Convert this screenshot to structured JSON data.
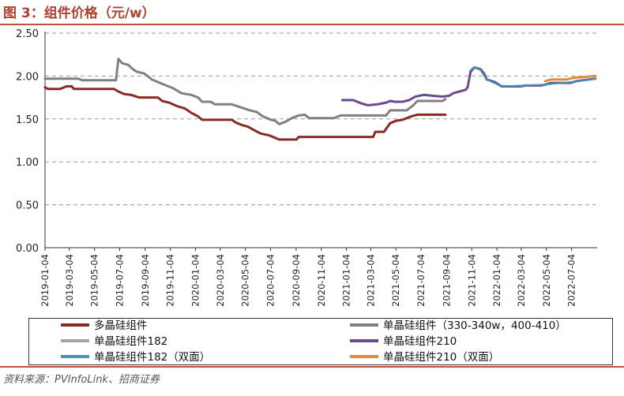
{
  "header": {
    "title": "图 3：组件价格（元/w）"
  },
  "source": "资料来源：PVInfoLink、招商证券",
  "chart_data": {
    "type": "line",
    "title": "",
    "xlabel": "",
    "ylabel": "",
    "ylim": [
      0,
      2.5
    ],
    "yticks": [
      "0.00",
      "0.50",
      "1.00",
      "1.50",
      "2.00",
      "2.50"
    ],
    "xticks": [
      "2019-01-04",
      "2019-03-04",
      "2019-05-04",
      "2019-07-04",
      "2019-09-04",
      "2019-11-04",
      "2020-01-04",
      "2020-03-04",
      "2020-05-04",
      "2020-07-04",
      "2020-09-04",
      "2020-11-04",
      "2021-01-04",
      "2021-03-04",
      "2021-05-04",
      "2021-07-04",
      "2021-09-04",
      "2021-11-04",
      "2022-01-04",
      "2022-03-04",
      "2022-05-04",
      "2022-07-04"
    ],
    "grid": "horizontal-dashed",
    "legend_position": "bottom",
    "series": [
      {
        "name": "多晶硅组件",
        "color": "#8b2a22",
        "points": [
          [
            "2019-01-04",
            1.87
          ],
          [
            "2019-01-10",
            1.85
          ],
          [
            "2019-02-10",
            1.85
          ],
          [
            "2019-02-25",
            1.88
          ],
          [
            "2019-03-10",
            1.88
          ],
          [
            "2019-03-15",
            1.85
          ],
          [
            "2019-06-20",
            1.85
          ],
          [
            "2019-07-01",
            1.82
          ],
          [
            "2019-07-15",
            1.79
          ],
          [
            "2019-08-01",
            1.78
          ],
          [
            "2019-08-20",
            1.75
          ],
          [
            "2019-10-05",
            1.75
          ],
          [
            "2019-10-15",
            1.71
          ],
          [
            "2019-11-01",
            1.69
          ],
          [
            "2019-11-20",
            1.65
          ],
          [
            "2019-12-10",
            1.62
          ],
          [
            "2019-12-25",
            1.57
          ],
          [
            "2020-01-10",
            1.53
          ],
          [
            "2020-01-20",
            1.49
          ],
          [
            "2020-03-10",
            1.49
          ],
          [
            "2020-04-01",
            1.49
          ],
          [
            "2020-04-10",
            1.46
          ],
          [
            "2020-04-25",
            1.43
          ],
          [
            "2020-05-10",
            1.41
          ],
          [
            "2020-05-25",
            1.37
          ],
          [
            "2020-06-10",
            1.33
          ],
          [
            "2020-06-30",
            1.31
          ],
          [
            "2020-07-15",
            1.28
          ],
          [
            "2020-07-25",
            1.26
          ],
          [
            "2020-09-05",
            1.26
          ],
          [
            "2020-09-10",
            1.29
          ],
          [
            "2021-03-10",
            1.29
          ],
          [
            "2021-03-15",
            1.35
          ],
          [
            "2021-04-05",
            1.35
          ],
          [
            "2021-04-20",
            1.45
          ],
          [
            "2021-05-05",
            1.48
          ],
          [
            "2021-05-20",
            1.49
          ],
          [
            "2021-06-10",
            1.53
          ],
          [
            "2021-06-25",
            1.55
          ],
          [
            "2021-09-01",
            1.55
          ]
        ]
      },
      {
        "name": "单晶硅组件（330-340w，400-410）",
        "color": "#808080",
        "points": [
          [
            "2019-01-04",
            1.97
          ],
          [
            "2019-03-25",
            1.97
          ],
          [
            "2019-04-05",
            1.95
          ],
          [
            "2019-06-25",
            1.95
          ],
          [
            "2019-07-01",
            2.2
          ],
          [
            "2019-07-10",
            2.15
          ],
          [
            "2019-07-25",
            2.13
          ],
          [
            "2019-08-05",
            2.08
          ],
          [
            "2019-08-15",
            2.05
          ],
          [
            "2019-09-01",
            2.03
          ],
          [
            "2019-09-10",
            2.0
          ],
          [
            "2019-09-20",
            1.96
          ],
          [
            "2019-10-10",
            1.92
          ],
          [
            "2019-10-25",
            1.89
          ],
          [
            "2019-11-10",
            1.86
          ],
          [
            "2019-12-01",
            1.8
          ],
          [
            "2019-12-25",
            1.78
          ],
          [
            "2020-01-10",
            1.75
          ],
          [
            "2020-01-20",
            1.7
          ],
          [
            "2020-02-10",
            1.7
          ],
          [
            "2020-02-20",
            1.67
          ],
          [
            "2020-04-01",
            1.67
          ],
          [
            "2020-04-20",
            1.64
          ],
          [
            "2020-05-15",
            1.6
          ],
          [
            "2020-06-01",
            1.58
          ],
          [
            "2020-06-15",
            1.53
          ],
          [
            "2020-07-05",
            1.49
          ],
          [
            "2020-07-15",
            1.48
          ],
          [
            "2020-07-25",
            1.44
          ],
          [
            "2020-08-10",
            1.47
          ],
          [
            "2020-08-25",
            1.51
          ],
          [
            "2020-09-10",
            1.54
          ],
          [
            "2020-09-25",
            1.55
          ],
          [
            "2020-10-05",
            1.51
          ],
          [
            "2020-12-05",
            1.51
          ],
          [
            "2020-12-20",
            1.54
          ],
          [
            "2021-04-10",
            1.54
          ],
          [
            "2021-04-20",
            1.6
          ],
          [
            "2021-05-30",
            1.6
          ],
          [
            "2021-06-15",
            1.66
          ],
          [
            "2021-06-25",
            1.71
          ],
          [
            "2021-08-25",
            1.71
          ],
          [
            "2021-09-01",
            1.73
          ]
        ]
      },
      {
        "name": "单晶硅组件182",
        "color": "#a6a6a6",
        "points": []
      },
      {
        "name": "单晶硅组件210",
        "color": "#6b4a94",
        "points": [
          [
            "2020-12-25",
            1.72
          ],
          [
            "2021-01-20",
            1.72
          ],
          [
            "2021-02-10",
            1.68
          ],
          [
            "2021-02-25",
            1.66
          ],
          [
            "2021-03-20",
            1.67
          ],
          [
            "2021-04-10",
            1.69
          ],
          [
            "2021-04-20",
            1.71
          ],
          [
            "2021-05-01",
            1.7
          ],
          [
            "2021-05-20",
            1.7
          ],
          [
            "2021-06-05",
            1.72
          ],
          [
            "2021-06-20",
            1.76
          ],
          [
            "2021-07-10",
            1.78
          ],
          [
            "2021-08-01",
            1.77
          ],
          [
            "2021-08-25",
            1.76
          ],
          [
            "2021-09-10",
            1.77
          ],
          [
            "2021-09-20",
            1.8
          ],
          [
            "2021-10-05",
            1.82
          ],
          [
            "2021-10-20",
            1.84
          ],
          [
            "2021-10-25",
            1.87
          ],
          [
            "2021-11-01",
            2.05
          ],
          [
            "2021-11-10",
            2.1
          ],
          [
            "2021-11-25",
            2.08
          ],
          [
            "2021-12-05",
            2.02
          ],
          [
            "2021-12-10",
            1.96
          ],
          [
            "2021-12-30",
            1.93
          ],
          [
            "2022-01-15",
            1.88
          ],
          [
            "2022-03-01",
            1.88
          ],
          [
            "2022-03-15",
            1.89
          ],
          [
            "2022-04-20",
            1.89
          ],
          [
            "2022-05-01",
            1.9
          ],
          [
            "2022-05-15",
            1.92
          ],
          [
            "2022-07-01",
            1.92
          ],
          [
            "2022-07-15",
            1.94
          ],
          [
            "2022-08-15",
            1.96
          ],
          [
            "2022-08-31",
            1.97
          ]
        ]
      },
      {
        "name": "单晶硅组件182（双面）",
        "color": "#3f97b3",
        "points": [
          [
            "2021-11-01",
            2.07
          ],
          [
            "2021-11-10",
            2.1
          ],
          [
            "2021-11-25",
            2.07
          ],
          [
            "2021-12-10",
            1.96
          ],
          [
            "2022-01-15",
            1.88
          ],
          [
            "2022-05-01",
            1.9
          ],
          [
            "2022-07-01",
            1.93
          ],
          [
            "2022-08-31",
            1.97
          ]
        ]
      },
      {
        "name": "单晶硅组件210（双面）",
        "color": "#e38b3a",
        "points": [
          [
            "2022-05-01",
            1.94
          ],
          [
            "2022-05-15",
            1.96
          ],
          [
            "2022-06-20",
            1.96
          ],
          [
            "2022-07-10",
            1.98
          ],
          [
            "2022-08-05",
            1.99
          ],
          [
            "2022-08-31",
            2.0
          ]
        ]
      }
    ]
  }
}
